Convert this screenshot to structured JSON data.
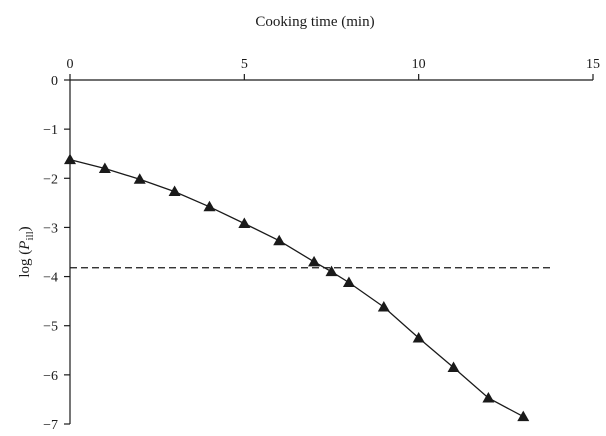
{
  "chart_data": {
    "type": "line",
    "xlabel": "Cooking time (min)",
    "ylabel_prefix": "log (",
    "ylabel_var": "P",
    "ylabel_sub": "ill",
    "ylabel_suffix": ")",
    "xlim": [
      0,
      15
    ],
    "ylim": [
      -7,
      0
    ],
    "x_ticks": [
      0,
      5,
      10,
      15
    ],
    "y_ticks": [
      0,
      -1,
      -2,
      -3,
      -4,
      -5,
      -6,
      -7
    ],
    "y_tick_labels": [
      "0",
      "−1",
      "−2",
      "−3",
      "−4",
      "−5",
      "−6",
      "−7"
    ],
    "x_axis_position": "top",
    "grid": false,
    "series": [
      {
        "marker": "triangle",
        "color": "#1a1a1a",
        "x": [
          0,
          1,
          2,
          3,
          4,
          5,
          6,
          7,
          7.5,
          8,
          9,
          10,
          11,
          12,
          13
        ],
        "y": [
          -1.62,
          -1.8,
          -2.02,
          -2.27,
          -2.58,
          -2.92,
          -3.27,
          -3.7,
          -3.9,
          -4.12,
          -4.62,
          -5.25,
          -5.85,
          -6.47,
          -6.85
        ]
      }
    ],
    "reference_line": {
      "y": -3.82,
      "x_range": [
        0,
        13.8
      ],
      "style": "dashed",
      "color": "#1a1a1a"
    }
  }
}
